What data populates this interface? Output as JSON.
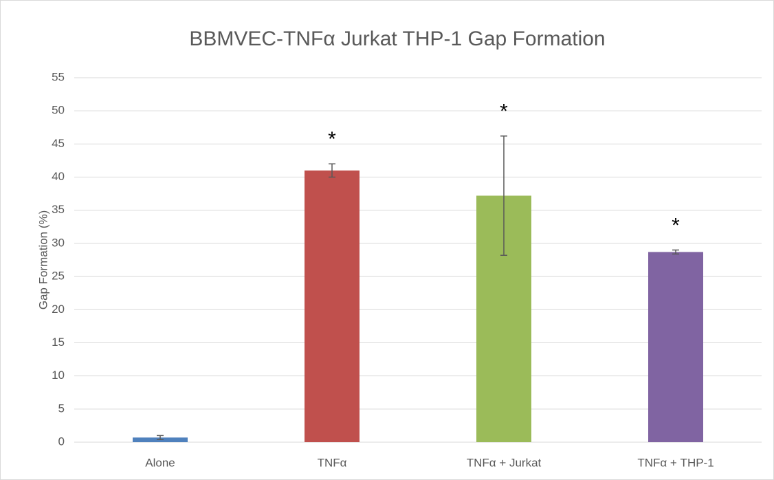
{
  "chart_data": {
    "type": "bar",
    "title": "BBMVEC-TNFα Jurkat THP-1 Gap Formation",
    "y_label": "Gap Formation (%)",
    "categories": [
      "Alone",
      "TNFα",
      "TNFα + Jurkat",
      "TNFα + THP-1"
    ],
    "values": [
      0.7,
      41,
      37.2,
      28.7
    ],
    "errors": [
      0.3,
      1,
      9,
      0.3
    ],
    "colors": [
      "#4f81bd",
      "#c0504d",
      "#9bbb59",
      "#8064a2"
    ],
    "annotations": [
      null,
      "*",
      "*",
      "*"
    ],
    "ylim": [
      0,
      55
    ],
    "yticks": [
      0,
      5,
      10,
      15,
      20,
      25,
      30,
      35,
      40,
      45,
      50,
      55
    ],
    "grid": true
  }
}
